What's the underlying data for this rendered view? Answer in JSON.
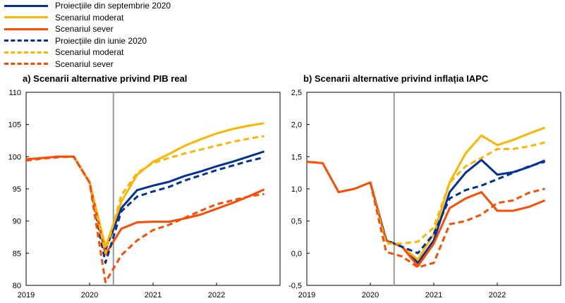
{
  "legend": [
    {
      "label": "Proiecțiile din septembrie 2020",
      "color": "#003299",
      "dash": false
    },
    {
      "label": "Scenariul moderat",
      "color": "#FFB400",
      "dash": false
    },
    {
      "label": "Scenariul sever",
      "color": "#FF4B00",
      "dash": false
    },
    {
      "label": "Proiecțiile din iunie 2020",
      "color": "#003299",
      "dash": true
    },
    {
      "label": "Scenariul moderat",
      "color": "#FFB400",
      "dash": true
    },
    {
      "label": "Scenariul sever",
      "color": "#FF4B00",
      "dash": true
    }
  ],
  "chart_data": [
    {
      "type": "line",
      "title": "a) Scenarii alternative privind PIB real",
      "x": [
        2019.0,
        2019.25,
        2019.5,
        2019.75,
        2020.0,
        2020.25,
        2020.5,
        2020.75,
        2021.0,
        2021.25,
        2021.5,
        2021.75,
        2022.0,
        2022.25,
        2022.5,
        2022.75
      ],
      "xticks": [
        "2019",
        "2020",
        "2021",
        "2022"
      ],
      "yticks": [
        "110",
        "105",
        "100",
        "95",
        "90",
        "85",
        "80"
      ],
      "ylim": [
        80,
        110
      ],
      "vline": 2020.375,
      "series": [
        {
          "name": "Proiecțiile din septembrie 2020",
          "color": "#003299",
          "dash": false,
          "x": [
            2019.75,
            2020.0,
            2020.25,
            2020.5,
            2020.75,
            2021.0,
            2021.25,
            2021.5,
            2021.75,
            2022.0,
            2022.25,
            2022.5,
            2022.75
          ],
          "values": [
            100.0,
            96.0,
            85.5,
            92.0,
            94.8,
            95.5,
            96.1,
            97.0,
            97.7,
            98.5,
            99.2,
            100.0,
            100.8
          ]
        },
        {
          "name": "Scenariul moderat",
          "color": "#FFB400",
          "dash": false,
          "x": [
            2019.75,
            2020.0,
            2020.25,
            2020.5,
            2020.75,
            2021.0,
            2021.25,
            2021.5,
            2021.75,
            2022.0,
            2022.25,
            2022.5,
            2022.75
          ],
          "values": [
            100.0,
            96.0,
            86.0,
            93.0,
            97.2,
            99.2,
            100.4,
            101.7,
            102.7,
            103.6,
            104.3,
            104.8,
            105.2
          ]
        },
        {
          "name": "Scenariul sever",
          "color": "#FF4B00",
          "dash": false,
          "x": [
            2019.0,
            2019.25,
            2019.5,
            2019.75,
            2020.0,
            2020.25,
            2020.5,
            2020.75,
            2021.0,
            2021.25,
            2021.5,
            2021.75,
            2022.0,
            2022.25,
            2022.5,
            2022.75
          ],
          "values": [
            99.6,
            99.8,
            100.0,
            100.0,
            96.0,
            84.8,
            88.8,
            89.8,
            89.9,
            89.9,
            90.4,
            91.0,
            91.9,
            92.8,
            93.8,
            94.9
          ]
        },
        {
          "name": "Proiecțiile din iunie 2020",
          "color": "#003299",
          "dash": true,
          "x": [
            2019.75,
            2020.0,
            2020.25,
            2020.5,
            2020.75,
            2021.0,
            2021.25,
            2021.5,
            2021.75,
            2022.0,
            2022.25,
            2022.5,
            2022.75
          ],
          "values": [
            100.0,
            96.0,
            83.5,
            91.5,
            93.8,
            94.6,
            95.3,
            96.3,
            97.1,
            97.9,
            98.6,
            99.3,
            99.9
          ]
        },
        {
          "name": "Scenariul moderat",
          "color": "#FFB400",
          "dash": true,
          "x": [
            2019.75,
            2020.0,
            2020.25,
            2020.5,
            2020.75,
            2021.0,
            2021.25,
            2021.5,
            2021.75,
            2022.0,
            2022.25,
            2022.5,
            2022.75
          ],
          "values": [
            100.0,
            96.0,
            85.0,
            94.0,
            97.5,
            99.0,
            99.8,
            100.5,
            101.1,
            101.7,
            102.3,
            102.8,
            103.2
          ]
        },
        {
          "name": "Scenariul sever",
          "color": "#FF4B00",
          "dash": true,
          "x": [
            2019.0,
            2019.25,
            2019.5,
            2019.75,
            2020.0,
            2020.25,
            2020.5,
            2020.75,
            2021.0,
            2021.25,
            2021.5,
            2021.75,
            2022.0,
            2022.25,
            2022.5,
            2022.75
          ],
          "values": [
            99.4,
            99.7,
            99.9,
            100.0,
            96.0,
            80.5,
            84.7,
            87.0,
            88.6,
            89.4,
            90.5,
            91.6,
            92.6,
            93.2,
            93.8,
            94.2
          ]
        }
      ]
    },
    {
      "type": "line",
      "title": "b) Scenarii alternative privind inflația IAPC",
      "x": [
        2019.0,
        2019.25,
        2019.5,
        2019.75,
        2020.0,
        2020.25,
        2020.5,
        2020.75,
        2021.0,
        2021.25,
        2021.5,
        2021.75,
        2022.0,
        2022.25,
        2022.5,
        2022.75
      ],
      "xticks": [
        "2019",
        "2020",
        "2021",
        "2022"
      ],
      "yticks": [
        "2,5",
        "2,0",
        "1,5",
        "1,0",
        "0,5",
        "0,0",
        "-0,5"
      ],
      "ylim": [
        -0.5,
        2.5
      ],
      "vline": 2020.375,
      "series": [
        {
          "name": "Proiecțiile din septembrie 2020",
          "color": "#003299",
          "dash": false,
          "x": [
            2020.0,
            2020.25,
            2020.5,
            2020.75,
            2021.0,
            2021.25,
            2021.5,
            2021.75,
            2022.0,
            2022.25,
            2022.5,
            2022.75
          ],
          "values": [
            1.1,
            0.2,
            0.1,
            -0.15,
            0.2,
            0.95,
            1.25,
            1.45,
            1.22,
            1.26,
            1.34,
            1.44
          ]
        },
        {
          "name": "Scenariul moderat",
          "color": "#FFB400",
          "dash": false,
          "x": [
            2020.0,
            2020.25,
            2020.5,
            2020.75,
            2021.0,
            2021.25,
            2021.5,
            2021.75,
            2022.0,
            2022.25,
            2022.5,
            2022.75
          ],
          "values": [
            1.1,
            0.2,
            0.1,
            -0.1,
            0.3,
            1.1,
            1.55,
            1.83,
            1.68,
            1.76,
            1.86,
            1.95
          ]
        },
        {
          "name": "Scenariul sever",
          "color": "#FF4B00",
          "dash": false,
          "x": [
            2019.0,
            2019.25,
            2019.5,
            2019.75,
            2020.0,
            2020.25,
            2020.5,
            2020.75,
            2021.0,
            2021.25,
            2021.5,
            2021.75,
            2022.0,
            2022.25,
            2022.5,
            2022.75
          ],
          "values": [
            1.42,
            1.4,
            0.95,
            1.0,
            1.1,
            0.2,
            0.1,
            -0.2,
            0.15,
            0.7,
            0.85,
            0.95,
            0.66,
            0.66,
            0.72,
            0.82
          ]
        },
        {
          "name": "Proiecțiile din iunie 2020",
          "color": "#003299",
          "dash": true,
          "x": [
            2020.0,
            2020.25,
            2020.5,
            2020.75,
            2021.0,
            2021.25,
            2021.5,
            2021.75,
            2022.0,
            2022.25,
            2022.5,
            2022.75
          ],
          "values": [
            1.1,
            0.2,
            0.1,
            0.0,
            0.3,
            0.85,
            0.98,
            1.05,
            1.15,
            1.25,
            1.35,
            1.42
          ]
        },
        {
          "name": "Scenariul moderat",
          "color": "#FFB400",
          "dash": true,
          "x": [
            2020.0,
            2020.25,
            2020.5,
            2020.75,
            2021.0,
            2021.25,
            2021.5,
            2021.75,
            2022.0,
            2022.25,
            2022.5,
            2022.75
          ],
          "values": [
            1.1,
            0.15,
            0.15,
            0.18,
            0.4,
            1.1,
            1.35,
            1.48,
            1.62,
            1.62,
            1.66,
            1.72
          ]
        },
        {
          "name": "Scenariul sever",
          "color": "#FF4B00",
          "dash": true,
          "x": [
            2020.0,
            2020.25,
            2020.5,
            2020.75,
            2021.0,
            2021.25,
            2021.5,
            2021.75,
            2022.0,
            2022.25,
            2022.5,
            2022.75
          ],
          "values": [
            1.1,
            0.02,
            -0.05,
            -0.22,
            -0.15,
            0.45,
            0.5,
            0.6,
            0.78,
            0.82,
            0.94,
            1.0
          ]
        }
      ]
    }
  ]
}
